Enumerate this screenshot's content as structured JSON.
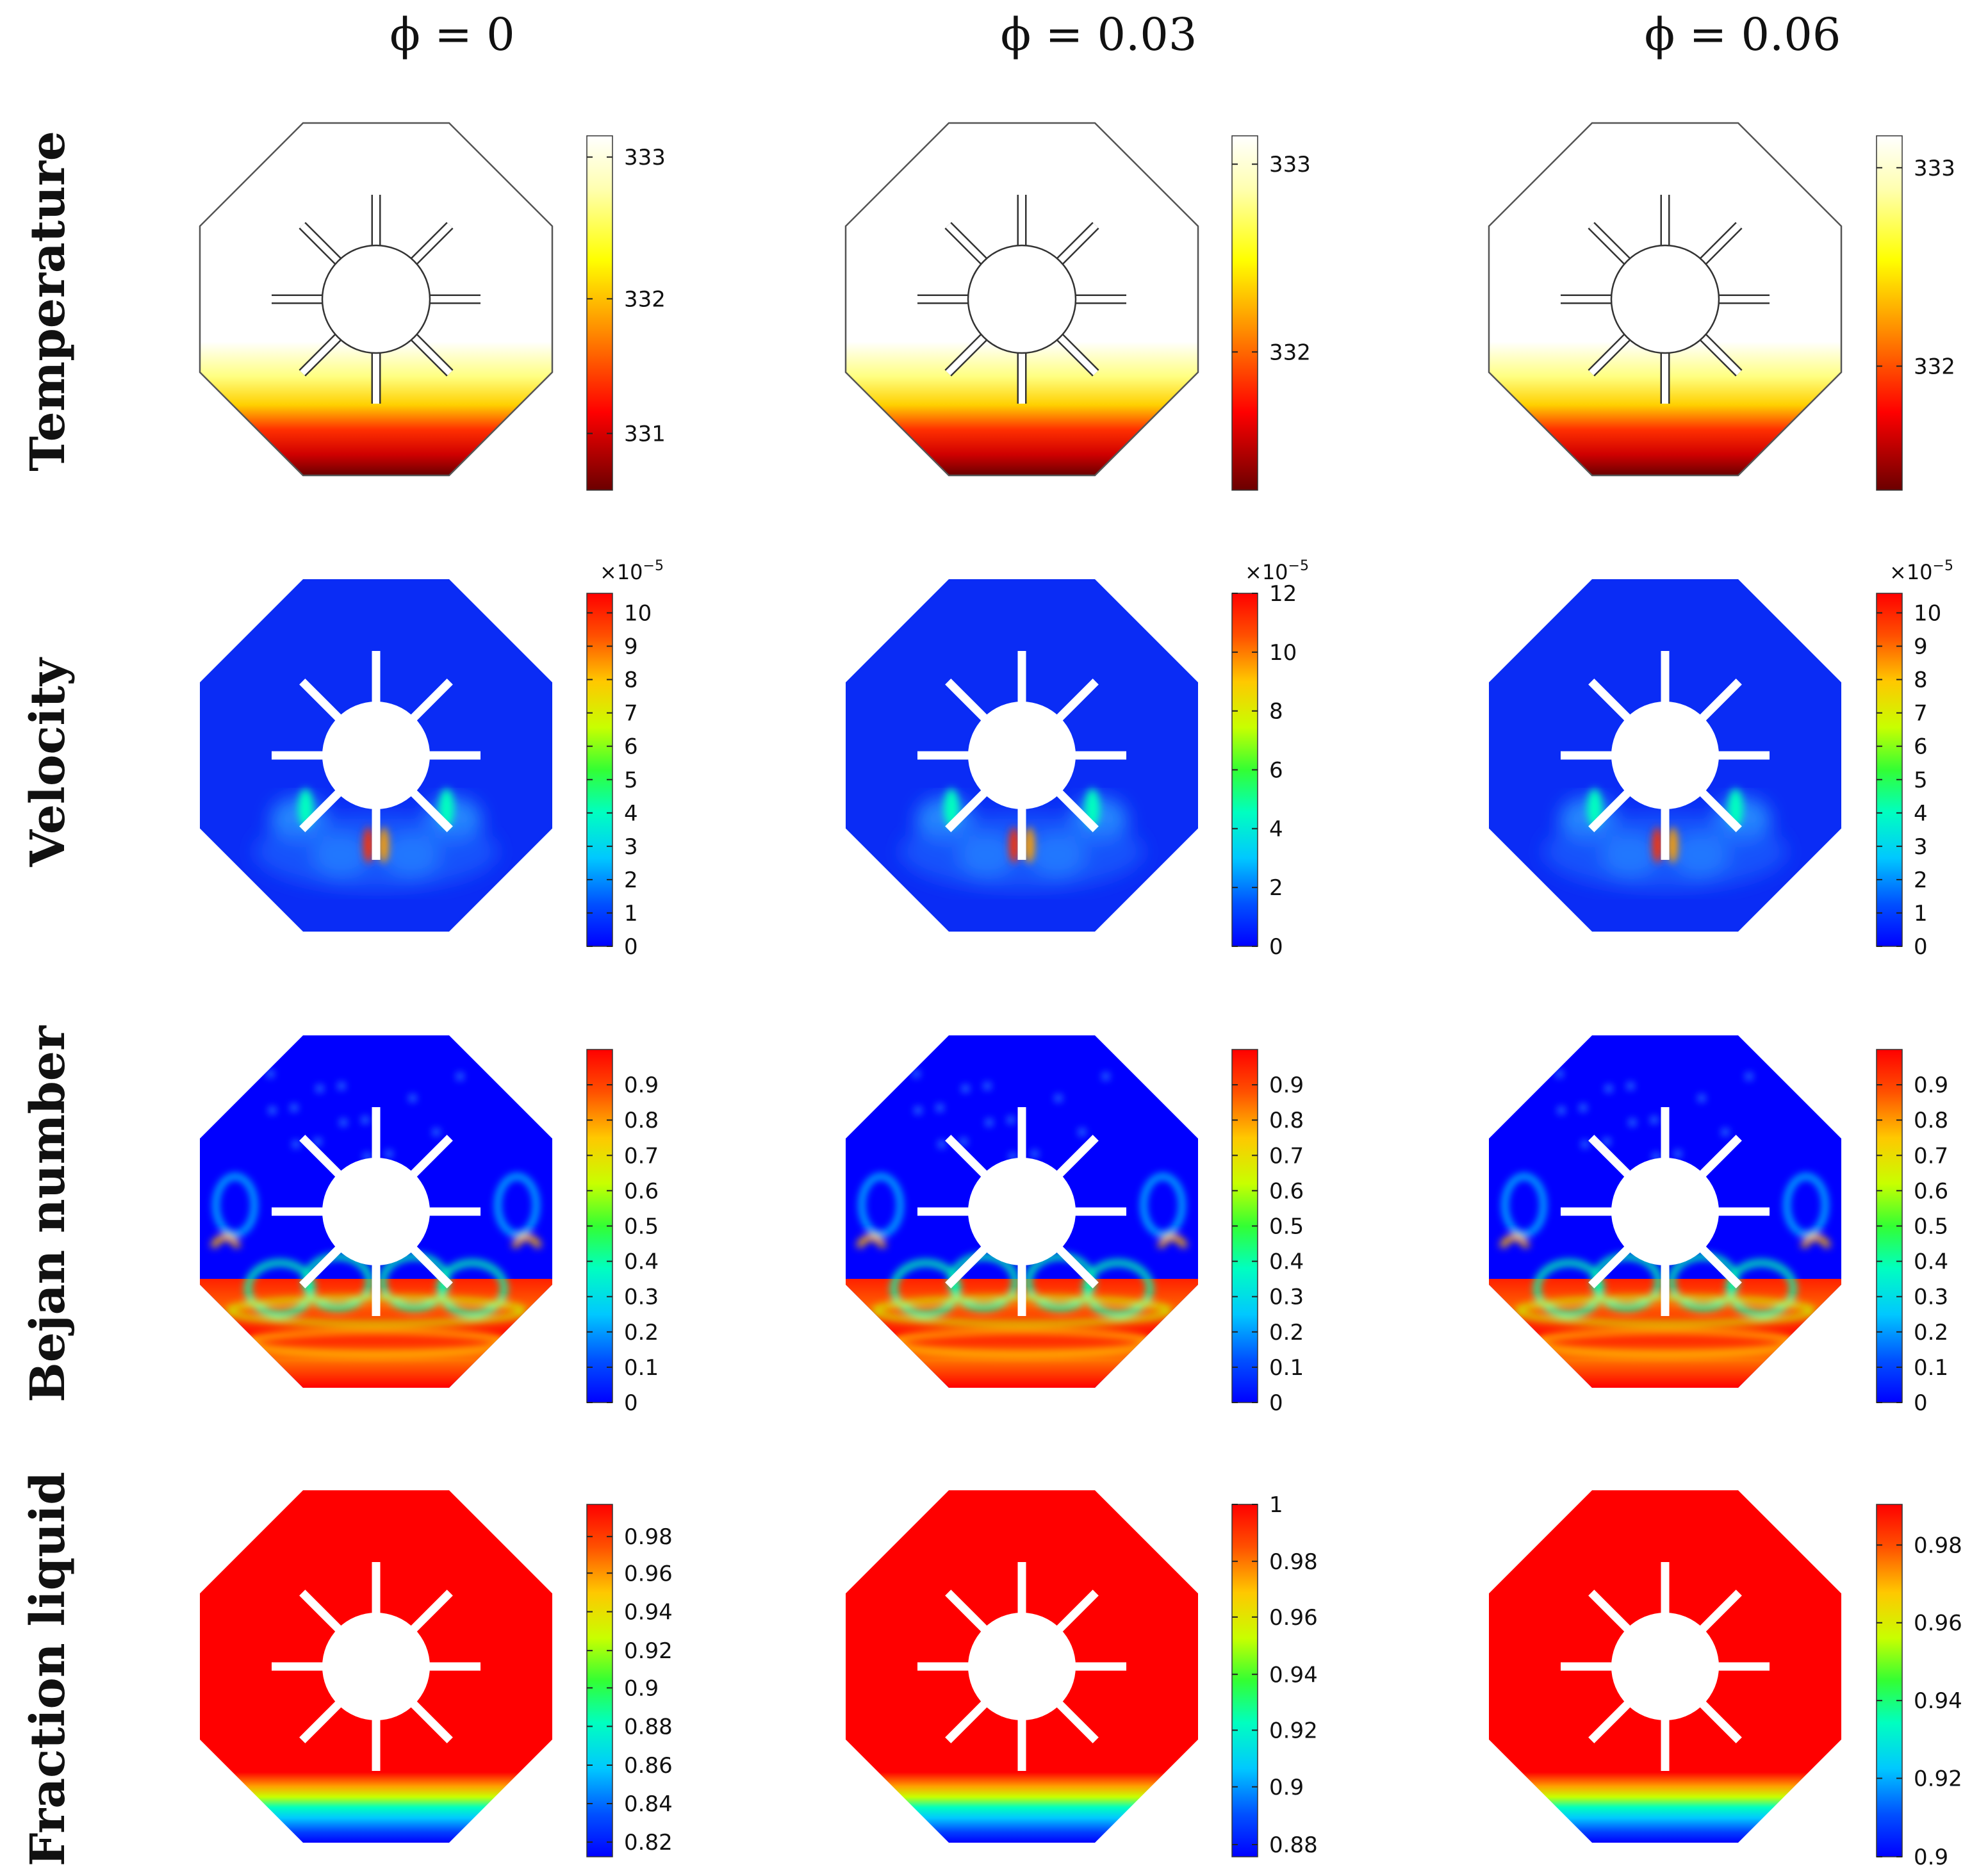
{
  "columns": [
    {
      "symbol": "ϕ",
      "label": " = 0"
    },
    {
      "symbol": "ϕ",
      "label": " = 0.03"
    },
    {
      "symbol": "ϕ",
      "label": " = 0.06"
    }
  ],
  "rows": [
    {
      "name": "Temperature",
      "field": "temperature",
      "colormap": "thermal",
      "multiplier": null,
      "colorbars": [
        {
          "ticks": [
            {
              "label": "333",
              "frac": 0.94
            },
            {
              "label": "332",
              "frac": 0.54
            },
            {
              "label": "331",
              "frac": 0.16
            }
          ]
        },
        {
          "ticks": [
            {
              "label": "333",
              "frac": 0.92
            },
            {
              "label": "332",
              "frac": 0.39
            }
          ]
        },
        {
          "ticks": [
            {
              "label": "333",
              "frac": 0.91
            },
            {
              "label": "332",
              "frac": 0.35
            }
          ]
        }
      ]
    },
    {
      "name": "Velocity",
      "field": "velocity",
      "colormap": "rainbow",
      "multiplier": "×10",
      "multiplier_exp": "−5",
      "colorbars": [
        {
          "ticks": [
            {
              "label": "10",
              "frac": 0.9446
            },
            {
              "label": "9",
              "frac": 0.8502
            },
            {
              "label": "8",
              "frac": 0.7557
            },
            {
              "label": "7",
              "frac": 0.6612
            },
            {
              "label": "6",
              "frac": 0.5668
            },
            {
              "label": "5",
              "frac": 0.4723
            },
            {
              "label": "4",
              "frac": 0.3779
            },
            {
              "label": "3",
              "frac": 0.2834
            },
            {
              "label": "2",
              "frac": 0.1889
            },
            {
              "label": "1",
              "frac": 0.0945
            },
            {
              "label": "0",
              "frac": 0.0
            }
          ]
        },
        {
          "ticks": [
            {
              "label": "12",
              "frac": 1.0
            },
            {
              "label": "10",
              "frac": 0.8333
            },
            {
              "label": "8",
              "frac": 0.6667
            },
            {
              "label": "6",
              "frac": 0.5
            },
            {
              "label": "4",
              "frac": 0.3333
            },
            {
              "label": "2",
              "frac": 0.1667
            },
            {
              "label": "0",
              "frac": 0.0
            }
          ]
        },
        {
          "ticks": [
            {
              "label": "10",
              "frac": 0.9446
            },
            {
              "label": "9",
              "frac": 0.8502
            },
            {
              "label": "8",
              "frac": 0.7557
            },
            {
              "label": "7",
              "frac": 0.6612
            },
            {
              "label": "6",
              "frac": 0.5668
            },
            {
              "label": "5",
              "frac": 0.4723
            },
            {
              "label": "4",
              "frac": 0.3779
            },
            {
              "label": "3",
              "frac": 0.2834
            },
            {
              "label": "2",
              "frac": 0.1889
            },
            {
              "label": "1",
              "frac": 0.0945
            },
            {
              "label": "0",
              "frac": 0.0
            }
          ]
        }
      ]
    },
    {
      "name": "Bejan number",
      "field": "bejan",
      "colormap": "rainbow",
      "multiplier": null,
      "colorbars": [
        {
          "ticks": [
            {
              "label": "0.9",
              "frac": 0.9
            },
            {
              "label": "0.8",
              "frac": 0.8
            },
            {
              "label": "0.7",
              "frac": 0.7
            },
            {
              "label": "0.6",
              "frac": 0.6
            },
            {
              "label": "0.5",
              "frac": 0.5
            },
            {
              "label": "0.4",
              "frac": 0.4
            },
            {
              "label": "0.3",
              "frac": 0.3
            },
            {
              "label": "0.2",
              "frac": 0.2
            },
            {
              "label": "0.1",
              "frac": 0.1
            },
            {
              "label": "0",
              "frac": 0.0
            }
          ]
        },
        {
          "ticks": [
            {
              "label": "0.9",
              "frac": 0.9
            },
            {
              "label": "0.8",
              "frac": 0.8
            },
            {
              "label": "0.7",
              "frac": 0.7
            },
            {
              "label": "0.6",
              "frac": 0.6
            },
            {
              "label": "0.5",
              "frac": 0.5
            },
            {
              "label": "0.4",
              "frac": 0.4
            },
            {
              "label": "0.3",
              "frac": 0.3
            },
            {
              "label": "0.2",
              "frac": 0.2
            },
            {
              "label": "0.1",
              "frac": 0.1
            },
            {
              "label": "0",
              "frac": 0.0
            }
          ]
        },
        {
          "ticks": [
            {
              "label": "0.9",
              "frac": 0.9
            },
            {
              "label": "0.8",
              "frac": 0.8
            },
            {
              "label": "0.7",
              "frac": 0.7
            },
            {
              "label": "0.6",
              "frac": 0.6
            },
            {
              "label": "0.5",
              "frac": 0.5
            },
            {
              "label": "0.4",
              "frac": 0.4
            },
            {
              "label": "0.3",
              "frac": 0.3
            },
            {
              "label": "0.2",
              "frac": 0.2
            },
            {
              "label": "0.1",
              "frac": 0.1
            },
            {
              "label": "0",
              "frac": 0.0
            }
          ]
        }
      ]
    },
    {
      "name": "Fraction liquid",
      "field": "fraction",
      "colormap": "rainbow",
      "multiplier": null,
      "colorbars": [
        {
          "ticks": [
            {
              "label": "0.98",
              "frac": 0.9087
            },
            {
              "label": "0.96",
              "frac": 0.805
            },
            {
              "label": "0.94",
              "frac": 0.6954
            },
            {
              "label": "0.92",
              "frac": 0.5851
            },
            {
              "label": "0.9",
              "frac": 0.4793
            },
            {
              "label": "0.88",
              "frac": 0.3701
            },
            {
              "label": "0.86",
              "frac": 0.26
            },
            {
              "label": "0.84",
              "frac": 0.1509
            },
            {
              "label": "0.82",
              "frac": 0.0417
            }
          ]
        },
        {
          "ticks": [
            {
              "label": "1",
              "frac": 1.0
            },
            {
              "label": "0.98",
              "frac": 0.8385
            },
            {
              "label": "0.96",
              "frac": 0.6803
            },
            {
              "label": "0.94",
              "frac": 0.5177
            },
            {
              "label": "0.92",
              "frac": 0.3592
            },
            {
              "label": "0.9",
              "frac": 0.1985
            },
            {
              "label": "0.88",
              "frac": 0.0346
            }
          ]
        },
        {
          "ticks": [
            {
              "label": "0.98",
              "frac": 0.8847
            },
            {
              "label": "0.96",
              "frac": 0.6641
            },
            {
              "label": "0.94",
              "frac": 0.4433
            },
            {
              "label": "0.92",
              "frac": 0.2227
            },
            {
              "label": "0.9",
              "frac": 0.0
            }
          ]
        }
      ]
    }
  ]
}
